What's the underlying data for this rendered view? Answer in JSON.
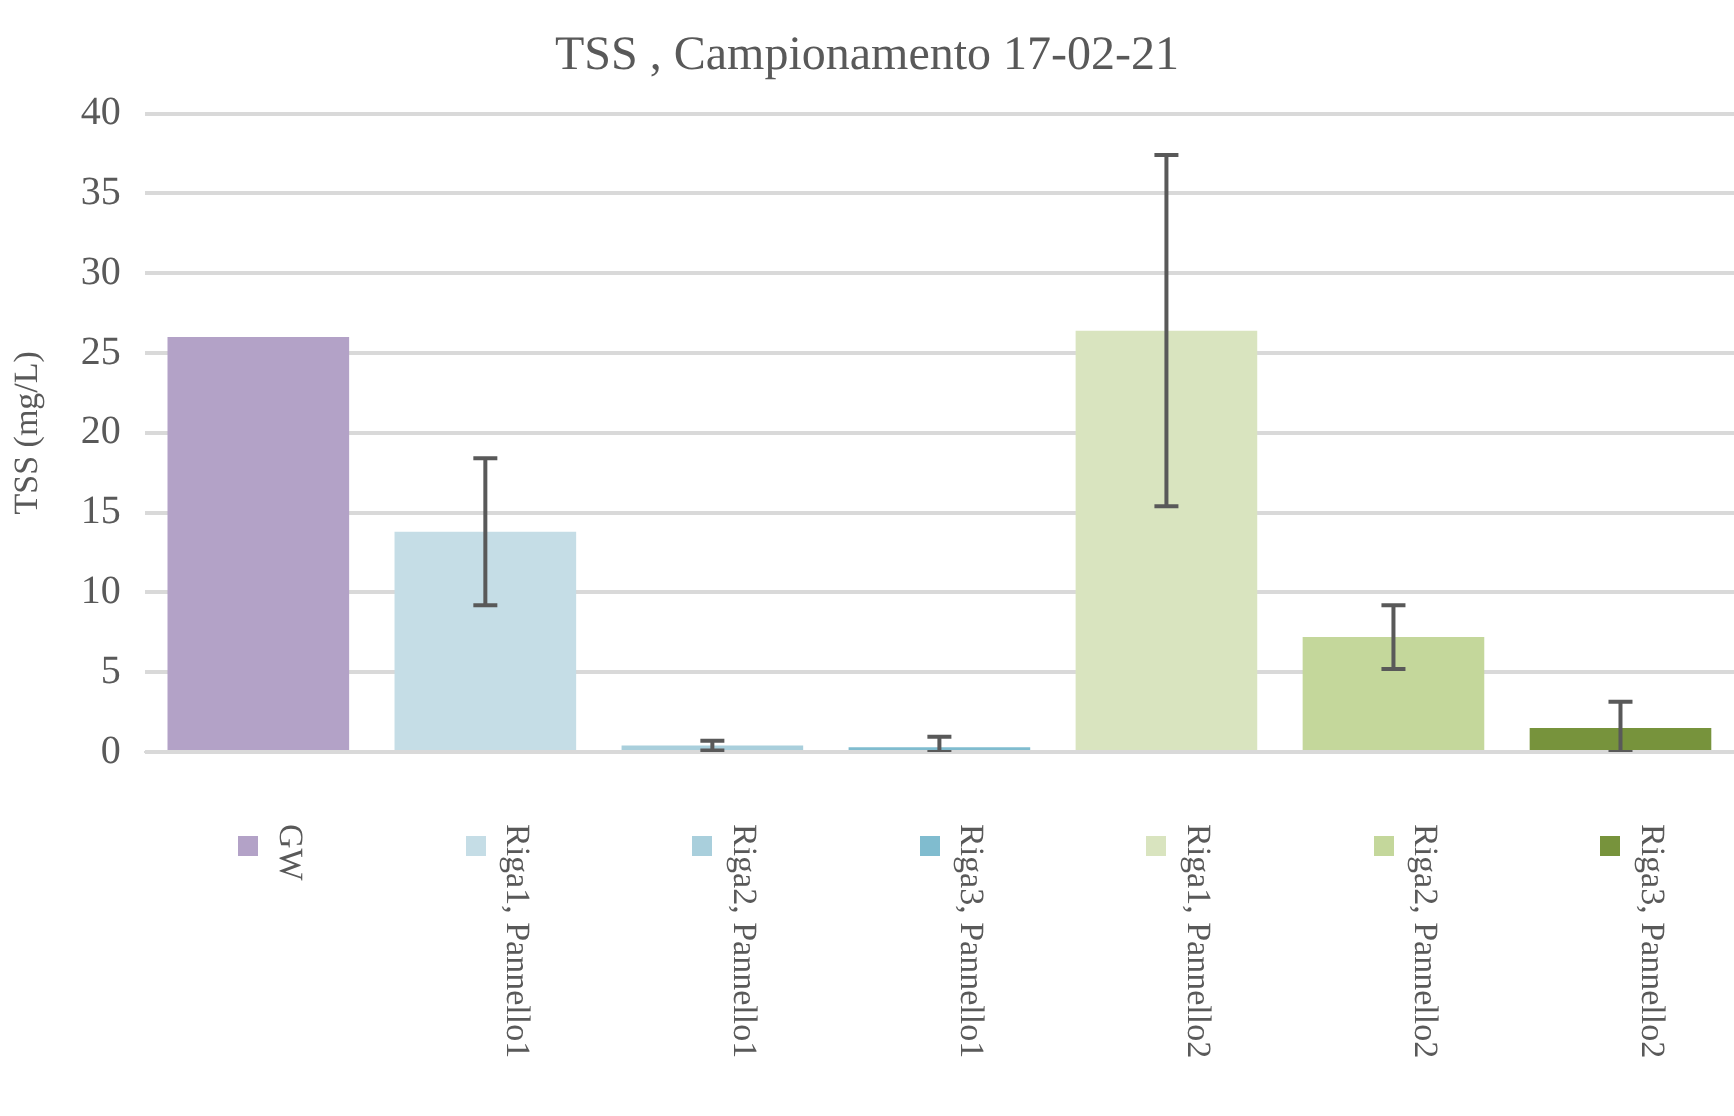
{
  "chart_data": {
    "type": "bar",
    "title": "TSS , Campionamento 17-02-21",
    "ylabel": "TSS (mg/L)",
    "categories": [
      null,
      null,
      null,
      null,
      null,
      null,
      null
    ],
    "series": [
      {
        "name": "GW",
        "color": "#b3a2c7",
        "values": [
          26,
          null,
          null,
          null,
          null,
          null,
          null
        ]
      },
      {
        "name": "Riga1, Pannello1",
        "color": "#c5dde6",
        "values": [
          null,
          13.8,
          null,
          null,
          null,
          null,
          null
        ],
        "errors": [
          null,
          4.6,
          null,
          null,
          null,
          null,
          null
        ]
      },
      {
        "name": "Riga2, Pannello1",
        "color": "#a9cfdc",
        "values": [
          null,
          null,
          0.4,
          null,
          null,
          null,
          null
        ],
        "errors": [
          null,
          null,
          0.3,
          null,
          null,
          null,
          null
        ]
      },
      {
        "name": "Riga3, Pannello1",
        "color": "#80bccf",
        "values": [
          null,
          null,
          null,
          0.3,
          null,
          null,
          null
        ],
        "errors": [
          null,
          null,
          null,
          [
            0,
            0.95
          ],
          null,
          null,
          null
        ]
      },
      {
        "name": "Riga1, Pannello2",
        "color": "#d9e4bf",
        "values": [
          null,
          null,
          null,
          null,
          26.4,
          null,
          null
        ],
        "errors": [
          null,
          null,
          null,
          null,
          11,
          null,
          null
        ]
      },
      {
        "name": "Riga2, Pannello2",
        "color": "#c4d79b",
        "values": [
          null,
          null,
          null,
          null,
          null,
          7.2,
          null
        ],
        "errors": [
          null,
          null,
          null,
          null,
          null,
          2,
          null
        ]
      },
      {
        "name": "Riga3, Pannello2",
        "color": "#77933c",
        "values": [
          null,
          null,
          null,
          null,
          null,
          null,
          1.5
        ],
        "errors": [
          null,
          null,
          null,
          null,
          null,
          null,
          [
            0,
            3.15
          ]
        ]
      }
    ],
    "ylim": [
      0,
      40
    ],
    "yticks": [
      0,
      5,
      10,
      15,
      20,
      25,
      30,
      35,
      40
    ],
    "grid": "y",
    "legend": "bottom"
  }
}
